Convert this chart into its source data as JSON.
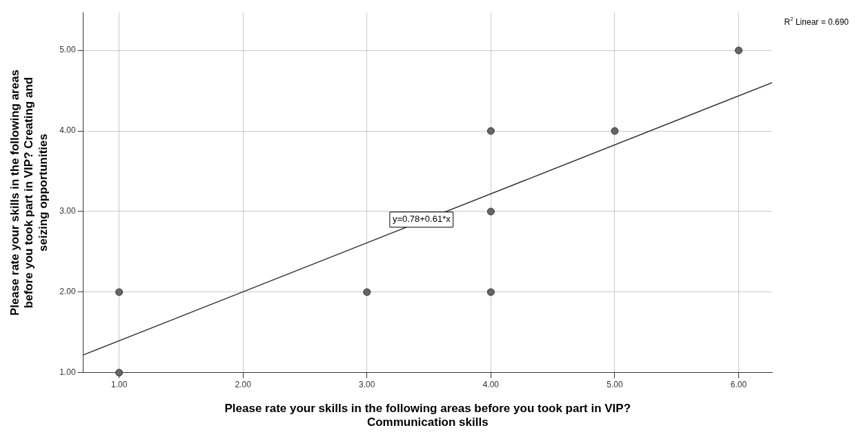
{
  "chart_data": {
    "type": "scatter",
    "xlabel": "Please rate your skills in the following areas before you took part in VIP? Communication skills",
    "ylabel": "Please rate your skills in the following areas before you took part in VIP? Creating and seizing opportunities",
    "x": [
      1,
      1,
      3,
      4,
      4,
      4,
      5,
      6
    ],
    "series": [
      {
        "type": "scatter",
        "color": "#666666",
        "marker": "circle",
        "values": [
          2,
          1,
          2,
          4,
          3,
          2,
          4,
          5
        ]
      },
      {
        "type": "line",
        "color": "#333333",
        "marker": "none",
        "x": [
          0.71,
          6.27
        ],
        "values": [
          1.22,
          4.6
        ]
      }
    ],
    "xlim": [
      0.71,
      6.27
    ],
    "ylim": [
      1,
      5.47
    ],
    "xticks": [
      {
        "value": 1,
        "label": "1.00"
      },
      {
        "value": 2,
        "label": "2.00"
      },
      {
        "value": 3,
        "label": "3.00"
      },
      {
        "value": 4,
        "label": "4.00"
      },
      {
        "value": 5,
        "label": "5.00"
      },
      {
        "value": 6,
        "label": "6.00"
      }
    ],
    "yticks": [
      {
        "value": 1,
        "label": "1.00"
      },
      {
        "value": 2,
        "label": "2.00"
      },
      {
        "value": 3,
        "label": "3.00"
      },
      {
        "value": 4,
        "label": "4.00"
      },
      {
        "value": 5,
        "label": "5.00"
      }
    ],
    "annotations": [
      "R$^{2}$ Linear = 0.690",
      {
        "text": "y=0.78+0.61*x",
        "x": 3.44,
        "y": 2.9
      }
    ],
    "grid": true,
    "legend": false,
    "line_style": "solid"
  }
}
